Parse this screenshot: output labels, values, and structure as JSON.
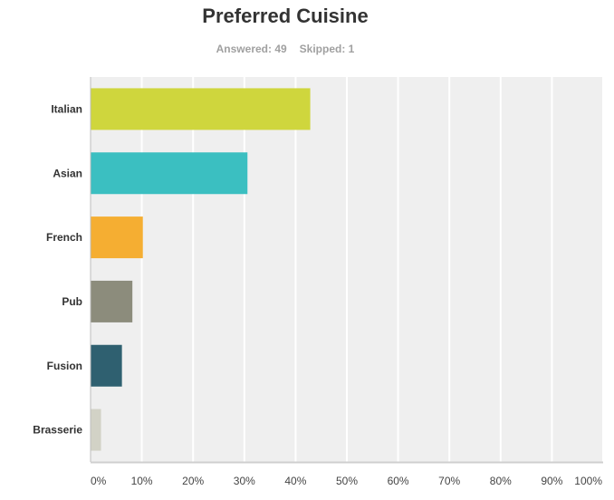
{
  "title": "Preferred Cuisine",
  "stats": {
    "answered": "Answered: 49",
    "skipped": "Skipped: 1"
  },
  "chart_data": {
    "type": "bar",
    "orientation": "horizontal",
    "title": "Preferred Cuisine",
    "categories": [
      "Italian",
      "Asian",
      "French",
      "Pub",
      "Fusion",
      "Brasserie"
    ],
    "values": [
      42.86,
      30.61,
      10.2,
      8.16,
      6.12,
      2.04
    ],
    "colors": [
      "#cfd63d",
      "#3bbfc1",
      "#f5ae32",
      "#8c8c7c",
      "#2f6070",
      "#d2d2c6"
    ],
    "xlim": [
      0,
      100
    ],
    "x_ticks": [
      "0%",
      "10%",
      "20%",
      "30%",
      "40%",
      "50%",
      "60%",
      "70%",
      "80%",
      "90%",
      "100%"
    ],
    "grid": true,
    "background": "#efefef"
  }
}
